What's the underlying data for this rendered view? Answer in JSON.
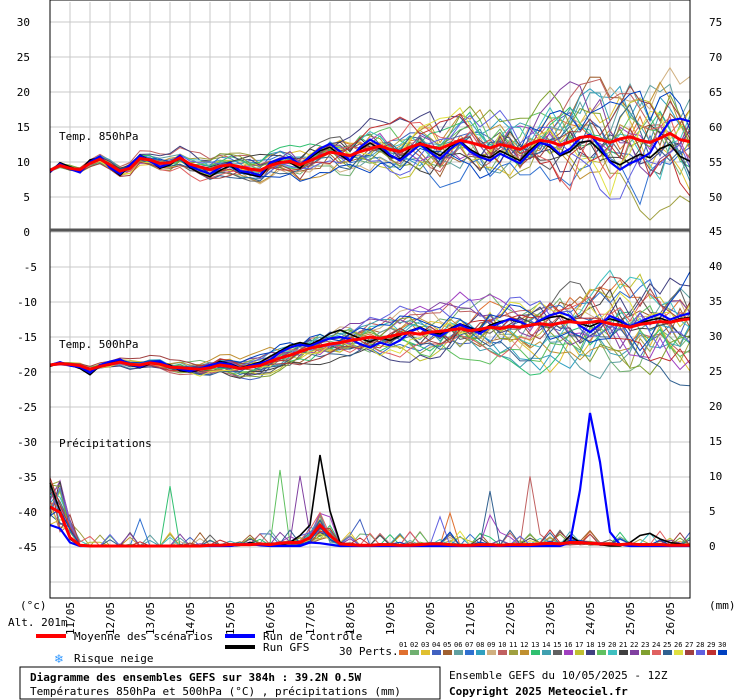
{
  "chart_data": {
    "type": "line",
    "title": "Diagramme des ensembles GEFS sur 384h : 39.2N 0.5W",
    "subtitle": "Températures 850hPa et 500hPa (°C) , précipitations (mm)",
    "run_info": "Ensemble GEFS du 10/05/2025 - 12Z",
    "copyright": "Copyright 2025 Meteociel.fr",
    "altitude": "Alt. 201m",
    "left_unit": "(°c)",
    "right_unit": "(mm)",
    "panel_labels": {
      "t850": "Temp. 850hPa",
      "t500": "Temp. 500hPa",
      "precip": "Précipitations"
    },
    "x_dates": [
      "11/05",
      "12/05",
      "13/05",
      "14/05",
      "15/05",
      "16/05",
      "17/05",
      "18/05",
      "19/05",
      "20/05",
      "21/05",
      "22/05",
      "23/05",
      "24/05",
      "25/05",
      "26/05"
    ],
    "upper_panel": {
      "left_ticks": [
        30,
        25,
        20,
        15,
        10,
        5,
        0
      ],
      "right_ticks": [
        75,
        70,
        65,
        60,
        55,
        50
      ],
      "ylim": [
        0,
        33
      ]
    },
    "lower_panel": {
      "left_ticks": [
        -5,
        -10,
        -15,
        -20,
        -25,
        -30,
        -35,
        -40,
        -45
      ],
      "right_ticks": [
        45,
        40,
        35,
        30,
        25,
        20,
        15,
        10,
        5,
        0
      ],
      "ylim": [
        -50,
        0
      ]
    },
    "legend": {
      "mean": "Moyenne des scénarios",
      "control": "Run de contrôle",
      "gfs": "Run GFS",
      "snow": "Risque neige",
      "perts_label": "30 Perts.",
      "pert_numbers": [
        "01",
        "02",
        "03",
        "04",
        "05",
        "06",
        "07",
        "08",
        "09",
        "10",
        "11",
        "12",
        "13",
        "14",
        "15",
        "16",
        "17",
        "18",
        "19",
        "20",
        "21",
        "22",
        "23",
        "24",
        "25",
        "26",
        "27",
        "28",
        "29",
        "30"
      ],
      "pert_colors": [
        "#e07030",
        "#70b070",
        "#e0c030",
        "#4060c0",
        "#a06030",
        "#60a0a0",
        "#3070d0",
        "#30a0c0",
        "#d0b080",
        "#c06060",
        "#a0a040",
        "#c09030",
        "#30c070",
        "#40a0b0",
        "#606060",
        "#a040c0",
        "#c0c030",
        "#404080",
        "#60c060",
        "#40c0c0",
        "#404040",
        "#8040a0",
        "#80a030",
        "#e06060",
        "#306090",
        "#e0e040",
        "#a04040",
        "#6060e0",
        "#c03030",
        "#0040c0"
      ]
    },
    "series": [
      {
        "name": "Moyenne des scénarios",
        "color": "#ff0000",
        "t850": [
          8.8,
          9.5,
          9.1,
          8.9,
          9.8,
          10.4,
          9.6,
          8.7,
          9.1,
          10.5,
          10.3,
          9.8,
          9.9,
          10.6,
          9.7,
          9.3,
          8.9,
          9.4,
          9.6,
          9.3,
          9.0,
          8.8,
          9.5,
          9.9,
          10.1,
          9.6,
          10.2,
          10.8,
          11.4,
          11.2,
          10.9,
          11.5,
          11.9,
          12.3,
          11.8,
          11.5,
          12.1,
          12.6,
          12.2,
          11.9,
          12.5,
          13.1,
          12.8,
          12.4,
          12.0,
          12.5,
          12.2,
          11.8,
          12.6,
          13.1,
          12.9,
          12.4,
          12.9,
          13.5,
          13.7,
          13.2,
          12.8,
          13.3,
          13.6,
          13.1,
          12.8,
          13.4,
          14.1,
          13.2,
          12.9
        ],
        "t500": [
          -19.0,
          -18.8,
          -18.9,
          -19.1,
          -19.6,
          -19.2,
          -18.9,
          -18.6,
          -18.9,
          -19.0,
          -18.7,
          -18.9,
          -19.3,
          -19.4,
          -19.5,
          -19.6,
          -19.4,
          -19.0,
          -19.2,
          -19.5,
          -19.3,
          -19.1,
          -18.5,
          -18.0,
          -17.6,
          -17.1,
          -16.6,
          -16.3,
          -16.0,
          -15.8,
          -15.5,
          -15.3,
          -15.0,
          -15.2,
          -14.9,
          -14.6,
          -14.4,
          -14.6,
          -14.3,
          -14.2,
          -14.0,
          -13.8,
          -14.1,
          -13.9,
          -13.6,
          -13.8,
          -13.5,
          -13.6,
          -13.3,
          -13.1,
          -13.3,
          -13.0,
          -12.8,
          -13.0,
          -12.9,
          -12.7,
          -13.1,
          -13.3,
          -13.6,
          -13.2,
          -13.0,
          -12.8,
          -12.9,
          -12.6,
          -12.4
        ],
        "precip": [
          5.6,
          4.8,
          1.2,
          0.1,
          0.0,
          0.0,
          0.0,
          0.0,
          0.0,
          0.0,
          0.0,
          0.0,
          0.0,
          0.0,
          0.0,
          0.0,
          0.1,
          0.1,
          0.2,
          0.2,
          0.2,
          0.3,
          0.2,
          0.4,
          0.5,
          0.5,
          1.2,
          3.0,
          1.5,
          0.3,
          0.2,
          0.1,
          0.1,
          0.2,
          0.2,
          0.1,
          0.1,
          0.2,
          0.3,
          0.3,
          0.2,
          0.1,
          0.1,
          0.2,
          0.2,
          0.1,
          0.2,
          0.2,
          0.2,
          0.3,
          0.4,
          0.3,
          0.5,
          0.5,
          0.4,
          0.3,
          0.3,
          0.2,
          0.3,
          0.2,
          0.2,
          0.2,
          0.1,
          0.1,
          0.1
        ]
      },
      {
        "name": "Run de contrôle",
        "color": "#0000ff",
        "t850": [
          8.6,
          9.7,
          9.0,
          8.5,
          10.0,
          10.8,
          9.2,
          8.3,
          9.6,
          10.9,
          10.1,
          9.3,
          9.8,
          10.9,
          9.4,
          8.8,
          8.3,
          9.2,
          9.9,
          8.7,
          8.5,
          8.1,
          9.9,
          10.4,
          10.7,
          9.6,
          10.8,
          11.9,
          12.6,
          11.5,
          10.2,
          12.1,
          13.2,
          12.4,
          11.0,
          10.2,
          11.3,
          12.5,
          11.4,
          10.4,
          11.8,
          12.9,
          11.5,
          10.7,
          10.2,
          11.2,
          10.5,
          9.8,
          11.3,
          12.7,
          12.4,
          11.1,
          11.9,
          13.4,
          13.9,
          12.2,
          10.0,
          8.9,
          9.8,
          10.4,
          11.3,
          13.8,
          15.9,
          16.2,
          15.8
        ],
        "t500": [
          -19.0,
          -18.6,
          -19.1,
          -19.3,
          -20.1,
          -19.0,
          -18.5,
          -18.2,
          -18.9,
          -19.3,
          -18.6,
          -18.5,
          -19.2,
          -19.6,
          -19.9,
          -19.5,
          -19.0,
          -18.7,
          -18.9,
          -19.6,
          -19.1,
          -18.8,
          -18.3,
          -17.2,
          -16.5,
          -16.1,
          -16.3,
          -15.7,
          -15.2,
          -15.0,
          -15.3,
          -16.0,
          -16.5,
          -15.8,
          -16.2,
          -15.5,
          -14.2,
          -13.7,
          -14.5,
          -14.9,
          -14.0,
          -13.2,
          -13.9,
          -14.5,
          -13.6,
          -13.0,
          -12.4,
          -12.8,
          -13.5,
          -12.6,
          -11.9,
          -11.5,
          -12.0,
          -13.4,
          -14.3,
          -13.2,
          -12.0,
          -12.6,
          -13.5,
          -12.8,
          -12.2,
          -11.7,
          -12.5,
          -12.0,
          -11.6
        ],
        "precip": [
          3.0,
          2.5,
          0.5,
          0.0,
          0.0,
          0.0,
          0.0,
          0.0,
          0.0,
          0.0,
          0.0,
          0.0,
          0.0,
          0.0,
          0.0,
          0.0,
          0.0,
          0.0,
          0.0,
          0.2,
          0.3,
          0.1,
          0.0,
          0.0,
          0.0,
          0.0,
          0.5,
          0.4,
          0.2,
          0.0,
          0.0,
          0.0,
          0.0,
          0.0,
          0.0,
          0.0,
          0.0,
          0.0,
          0.0,
          0.0,
          0.0,
          0.0,
          0.0,
          0.0,
          0.0,
          0.0,
          0.0,
          0.0,
          0.0,
          0.0,
          0.0,
          0.0,
          0.5,
          8.0,
          19.0,
          12.0,
          2.0,
          0.2,
          0.0,
          0.0,
          0.0,
          0.0,
          0.0,
          0.0,
          0.0
        ]
      },
      {
        "name": "Run GFS",
        "color": "#000000",
        "t850": [
          8.5,
          9.9,
          9.3,
          8.8,
          10.3,
          10.6,
          9.2,
          8.1,
          9.4,
          11.0,
          10.2,
          9.1,
          9.6,
          10.7,
          9.2,
          8.4,
          7.9,
          8.8,
          9.5,
          8.6,
          8.2,
          7.9,
          9.6,
          10.1,
          9.9,
          9.1,
          10.6,
          11.6,
          12.1,
          11.0,
          10.1,
          11.8,
          12.7,
          11.9,
          10.8,
          10.4,
          11.9,
          12.8,
          11.7,
          10.9,
          12.2,
          13.0,
          11.8,
          11.0,
          10.6,
          11.6,
          10.9,
          10.2,
          11.7,
          12.9,
          12.1,
          10.9,
          11.5,
          12.8,
          13.0,
          11.6,
          10.2,
          9.6,
          10.4,
          11.1,
          10.6,
          11.9,
          12.5,
          10.8,
          10.1
        ],
        "t500": [
          -19.2,
          -18.7,
          -19.0,
          -19.5,
          -20.4,
          -19.1,
          -18.6,
          -18.3,
          -19.0,
          -19.4,
          -18.8,
          -18.7,
          -19.0,
          -19.8,
          -20.0,
          -19.7,
          -19.2,
          -18.5,
          -18.8,
          -19.4,
          -19.0,
          -18.6,
          -17.8,
          -17.0,
          -16.2,
          -15.8,
          -16.1,
          -15.4,
          -14.5,
          -14.0,
          -14.6,
          -15.2,
          -15.7,
          -15.1,
          -15.5,
          -14.8,
          -14.1,
          -13.6,
          -14.3,
          -14.6,
          -13.8,
          -13.1,
          -13.7,
          -14.2,
          -13.3,
          -12.8,
          -12.5,
          -12.9,
          -13.4,
          -12.7,
          -12.2,
          -12.0,
          -12.6,
          -13.1,
          -13.5,
          -12.9,
          -12.4,
          -12.8,
          -13.4,
          -13.0,
          -12.6,
          -12.3,
          -12.8,
          -12.4,
          -12.2
        ],
        "precip": [
          9.0,
          5.0,
          1.0,
          0.0,
          0.0,
          0.0,
          0.0,
          0.0,
          0.0,
          0.0,
          0.0,
          0.0,
          0.0,
          0.0,
          0.0,
          0.0,
          0.0,
          0.0,
          0.0,
          0.1,
          0.5,
          0.2,
          0.1,
          0.0,
          0.5,
          1.5,
          3.0,
          13.0,
          5.0,
          0.5,
          0.1,
          0.0,
          0.0,
          0.0,
          0.0,
          0.0,
          0.0,
          0.0,
          0.0,
          0.0,
          0.0,
          0.0,
          0.0,
          0.0,
          0.0,
          0.0,
          0.0,
          0.0,
          0.0,
          0.0,
          0.0,
          0.0,
          1.5,
          0.5,
          0.3,
          0.2,
          0.0,
          0.0,
          0.5,
          1.5,
          1.8,
          1.0,
          0.5,
          0.3,
          0.0
        ]
      }
    ]
  }
}
